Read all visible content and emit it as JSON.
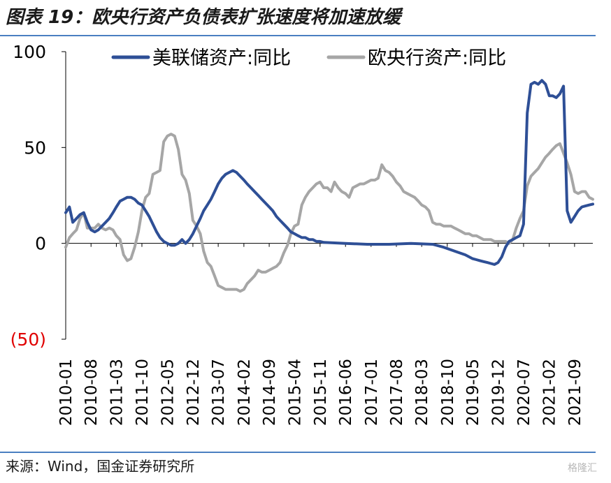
{
  "page": {
    "title": "图表 19：欧央行资产负债表扩张速度将加速放缓",
    "source": "来源：Wind，国金证券研究所",
    "watermark": "格隆汇"
  },
  "colors": {
    "fed": "#2e4f96",
    "ecb": "#a6a6a6",
    "negative_tick": "#e00000",
    "rule": "#4a7fc1"
  },
  "chart_data": {
    "type": "line",
    "title": "",
    "xlabel": "",
    "ylabel": "",
    "ylim": [
      -50,
      100
    ],
    "yticks": [
      {
        "value": 100,
        "label": "100"
      },
      {
        "value": 50,
        "label": "50"
      },
      {
        "value": 0,
        "label": "0"
      },
      {
        "value": -50,
        "label": "(50)"
      }
    ],
    "xticks": [
      "2010-01",
      "2010-08",
      "2011-03",
      "2011-10",
      "2012-05",
      "2012-12",
      "2013-07",
      "2014-02",
      "2014-09",
      "2015-04",
      "2015-11",
      "2016-06",
      "2017-01",
      "2017-08",
      "2018-03",
      "2018-10",
      "2019-05",
      "2019-12",
      "2020-07",
      "2021-02",
      "2021-09"
    ],
    "legend_position": "top",
    "grid": false,
    "series": [
      {
        "name": "美联储资产:同比",
        "points": [
          [
            "2010-01",
            16
          ],
          [
            "2010-02",
            19
          ],
          [
            "2010-03",
            11
          ],
          [
            "2010-04",
            13
          ],
          [
            "2010-05",
            15
          ],
          [
            "2010-06",
            16
          ],
          [
            "2010-07",
            11
          ],
          [
            "2010-08",
            7
          ],
          [
            "2010-09",
            6
          ],
          [
            "2010-10",
            7
          ],
          [
            "2010-11",
            9
          ],
          [
            "2010-12",
            11
          ],
          [
            "2011-01",
            13
          ],
          [
            "2011-02",
            16
          ],
          [
            "2011-03",
            19
          ],
          [
            "2011-04",
            22
          ],
          [
            "2011-05",
            23
          ],
          [
            "2011-06",
            24
          ],
          [
            "2011-07",
            24
          ],
          [
            "2011-08",
            23
          ],
          [
            "2011-09",
            21
          ],
          [
            "2011-10",
            20
          ],
          [
            "2011-11",
            17
          ],
          [
            "2011-12",
            14
          ],
          [
            "2012-01",
            10
          ],
          [
            "2012-02",
            6
          ],
          [
            "2012-03",
            3
          ],
          [
            "2012-04",
            1
          ],
          [
            "2012-05",
            0
          ],
          [
            "2012-06",
            -1
          ],
          [
            "2012-07",
            -1
          ],
          [
            "2012-08",
            0
          ],
          [
            "2012-09",
            2
          ],
          [
            "2012-10",
            0
          ],
          [
            "2012-11",
            2
          ],
          [
            "2012-12",
            5
          ],
          [
            "2013-01",
            9
          ],
          [
            "2013-02",
            13
          ],
          [
            "2013-03",
            17
          ],
          [
            "2013-04",
            20
          ],
          [
            "2013-05",
            23
          ],
          [
            "2013-06",
            27
          ],
          [
            "2013-07",
            31
          ],
          [
            "2013-08",
            34
          ],
          [
            "2013-09",
            36
          ],
          [
            "2013-10",
            37
          ],
          [
            "2013-11",
            38
          ],
          [
            "2013-12",
            37
          ],
          [
            "2014-01",
            35
          ],
          [
            "2014-02",
            33
          ],
          [
            "2014-03",
            31
          ],
          [
            "2014-04",
            29
          ],
          [
            "2014-05",
            27
          ],
          [
            "2014-06",
            25
          ],
          [
            "2014-07",
            23
          ],
          [
            "2014-08",
            21
          ],
          [
            "2014-09",
            19
          ],
          [
            "2014-10",
            17
          ],
          [
            "2014-11",
            14
          ],
          [
            "2014-12",
            12
          ],
          [
            "2015-01",
            10
          ],
          [
            "2015-02",
            8
          ],
          [
            "2015-03",
            6
          ],
          [
            "2015-04",
            5
          ],
          [
            "2015-05",
            4
          ],
          [
            "2015-06",
            3
          ],
          [
            "2015-07",
            3
          ],
          [
            "2015-08",
            2
          ],
          [
            "2015-09",
            2
          ],
          [
            "2015-10",
            1
          ],
          [
            "2015-11",
            1
          ],
          [
            "2015-12",
            0.5
          ],
          [
            "2016-06",
            0
          ],
          [
            "2016-12",
            -0.5
          ],
          [
            "2017-06",
            -0.5
          ],
          [
            "2017-12",
            0
          ],
          [
            "2018-06",
            -0.5
          ],
          [
            "2018-09",
            -2
          ],
          [
            "2018-12",
            -4
          ],
          [
            "2019-03",
            -6
          ],
          [
            "2019-05",
            -8
          ],
          [
            "2019-06",
            -8.5
          ],
          [
            "2019-07",
            -9
          ],
          [
            "2019-08",
            -9.5
          ],
          [
            "2019-09",
            -10
          ],
          [
            "2019-10",
            -10.5
          ],
          [
            "2019-11",
            -11
          ],
          [
            "2019-12",
            -10
          ],
          [
            "2020-01",
            -7
          ],
          [
            "2020-02",
            -2
          ],
          [
            "2020-03",
            1
          ],
          [
            "2020-04",
            2
          ],
          [
            "2020-05",
            3
          ],
          [
            "2020-06",
            4
          ],
          [
            "2020-07",
            10
          ],
          [
            "2020-08",
            68
          ],
          [
            "2020-09",
            83
          ],
          [
            "2020-10",
            84
          ],
          [
            "2020-11",
            83
          ],
          [
            "2020-12",
            85
          ],
          [
            "2021-01",
            83
          ],
          [
            "2021-02",
            77
          ],
          [
            "2021-03",
            77
          ],
          [
            "2021-04",
            76
          ],
          [
            "2021-05",
            78
          ],
          [
            "2021-06",
            82
          ],
          [
            "2021-07",
            17
          ],
          [
            "2021-08",
            11
          ],
          [
            "2021-09",
            14
          ],
          [
            "2021-10",
            17
          ],
          [
            "2021-11",
            19
          ],
          [
            "2021-12",
            19.5
          ],
          [
            "2022-01",
            20
          ],
          [
            "2022-02",
            20.5
          ]
        ]
      },
      {
        "name": "欧央行资产:同比",
        "points": [
          [
            "2010-01",
            -2
          ],
          [
            "2010-02",
            3
          ],
          [
            "2010-03",
            5
          ],
          [
            "2010-04",
            7
          ],
          [
            "2010-05",
            13
          ],
          [
            "2010-06",
            16
          ],
          [
            "2010-07",
            8
          ],
          [
            "2010-08",
            8
          ],
          [
            "2010-09",
            8
          ],
          [
            "2010-10",
            10
          ],
          [
            "2010-11",
            8
          ],
          [
            "2010-12",
            7
          ],
          [
            "2011-01",
            8
          ],
          [
            "2011-02",
            7
          ],
          [
            "2011-03",
            4
          ],
          [
            "2011-04",
            2
          ],
          [
            "2011-05",
            -6
          ],
          [
            "2011-06",
            -9
          ],
          [
            "2011-07",
            -8
          ],
          [
            "2011-08",
            -2
          ],
          [
            "2011-09",
            6
          ],
          [
            "2011-10",
            17
          ],
          [
            "2011-11",
            24
          ],
          [
            "2011-12",
            26
          ],
          [
            "2012-01",
            36
          ],
          [
            "2012-02",
            37
          ],
          [
            "2012-03",
            38
          ],
          [
            "2012-04",
            53
          ],
          [
            "2012-05",
            56
          ],
          [
            "2012-06",
            57
          ],
          [
            "2012-07",
            56
          ],
          [
            "2012-08",
            49
          ],
          [
            "2012-09",
            36
          ],
          [
            "2012-10",
            33
          ],
          [
            "2012-11",
            26
          ],
          [
            "2012-12",
            12
          ],
          [
            "2013-01",
            9
          ],
          [
            "2013-02",
            5
          ],
          [
            "2013-03",
            -4
          ],
          [
            "2013-04",
            -10
          ],
          [
            "2013-05",
            -12
          ],
          [
            "2013-06",
            -17
          ],
          [
            "2013-07",
            -22
          ],
          [
            "2013-08",
            -23
          ],
          [
            "2013-09",
            -24
          ],
          [
            "2013-10",
            -24
          ],
          [
            "2013-11",
            -24
          ],
          [
            "2013-12",
            -24
          ],
          [
            "2014-01",
            -25
          ],
          [
            "2014-02",
            -24
          ],
          [
            "2014-03",
            -21
          ],
          [
            "2014-04",
            -19
          ],
          [
            "2014-05",
            -17
          ],
          [
            "2014-06",
            -14
          ],
          [
            "2014-07",
            -15
          ],
          [
            "2014-08",
            -15
          ],
          [
            "2014-09",
            -14
          ],
          [
            "2014-10",
            -13
          ],
          [
            "2014-11",
            -12
          ],
          [
            "2014-12",
            -10
          ],
          [
            "2015-01",
            -5
          ],
          [
            "2015-02",
            -1
          ],
          [
            "2015-03",
            5
          ],
          [
            "2015-04",
            9
          ],
          [
            "2015-05",
            10
          ],
          [
            "2015-06",
            20
          ],
          [
            "2015-07",
            24
          ],
          [
            "2015-08",
            27
          ],
          [
            "2015-09",
            29
          ],
          [
            "2015-10",
            31
          ],
          [
            "2015-11",
            32
          ],
          [
            "2015-12",
            29
          ],
          [
            "2016-01",
            29
          ],
          [
            "2016-02",
            27
          ],
          [
            "2016-03",
            32
          ],
          [
            "2016-04",
            29
          ],
          [
            "2016-05",
            27
          ],
          [
            "2016-06",
            26
          ],
          [
            "2016-07",
            24
          ],
          [
            "2016-08",
            29
          ],
          [
            "2016-09",
            30
          ],
          [
            "2016-10",
            31
          ],
          [
            "2016-11",
            31
          ],
          [
            "2016-12",
            32
          ],
          [
            "2017-01",
            33
          ],
          [
            "2017-02",
            33
          ],
          [
            "2017-03",
            34
          ],
          [
            "2017-04",
            41
          ],
          [
            "2017-05",
            38
          ],
          [
            "2017-06",
            37
          ],
          [
            "2017-07",
            35
          ],
          [
            "2017-08",
            32
          ],
          [
            "2017-09",
            30
          ],
          [
            "2017-10",
            27
          ],
          [
            "2017-11",
            26
          ],
          [
            "2017-12",
            25
          ],
          [
            "2018-01",
            24
          ],
          [
            "2018-02",
            22
          ],
          [
            "2018-03",
            20
          ],
          [
            "2018-04",
            19
          ],
          [
            "2018-05",
            17
          ],
          [
            "2018-06",
            11
          ],
          [
            "2018-07",
            10
          ],
          [
            "2018-08",
            10
          ],
          [
            "2018-09",
            9
          ],
          [
            "2018-10",
            9
          ],
          [
            "2018-11",
            9
          ],
          [
            "2018-12",
            8
          ],
          [
            "2019-01",
            7
          ],
          [
            "2019-02",
            6
          ],
          [
            "2019-03",
            5
          ],
          [
            "2019-04",
            5
          ],
          [
            "2019-05",
            4
          ],
          [
            "2019-06",
            4
          ],
          [
            "2019-07",
            3
          ],
          [
            "2019-08",
            2
          ],
          [
            "2019-09",
            2
          ],
          [
            "2019-10",
            2
          ],
          [
            "2019-11",
            1
          ],
          [
            "2019-12",
            1
          ],
          [
            "2020-01",
            1
          ],
          [
            "2020-02",
            1
          ],
          [
            "2020-03",
            0
          ],
          [
            "2020-04",
            2
          ],
          [
            "2020-05",
            8
          ],
          [
            "2020-06",
            13
          ],
          [
            "2020-07",
            17
          ],
          [
            "2020-08",
            30
          ],
          [
            "2020-09",
            35
          ],
          [
            "2020-10",
            37
          ],
          [
            "2020-11",
            39
          ],
          [
            "2020-12",
            42
          ],
          [
            "2021-01",
            45
          ],
          [
            "2021-02",
            47
          ],
          [
            "2021-03",
            49
          ],
          [
            "2021-04",
            51
          ],
          [
            "2021-05",
            52
          ],
          [
            "2021-06",
            47
          ],
          [
            "2021-07",
            42
          ],
          [
            "2021-08",
            36
          ],
          [
            "2021-09",
            27
          ],
          [
            "2021-10",
            26
          ],
          [
            "2021-11",
            27
          ],
          [
            "2021-12",
            27
          ],
          [
            "2022-01",
            24
          ],
          [
            "2022-02",
            23
          ]
        ]
      }
    ]
  }
}
